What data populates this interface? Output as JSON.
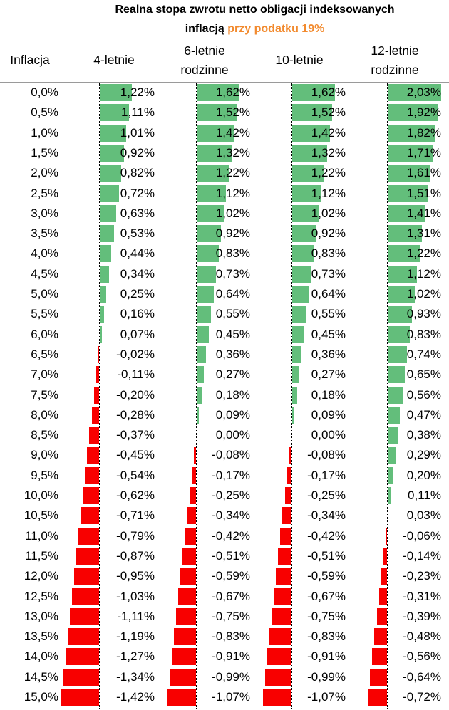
{
  "chart_data": {
    "type": "table",
    "title_line1": "Realna stopa zwrotu netto obligacji indeksowanych",
    "title_line2_prefix": "inflacją",
    "title_line2_accent": "przy podatku 19%",
    "row_header": "Inflacja",
    "columns": [
      {
        "label_line1": "4-letnie",
        "label_line2": ""
      },
      {
        "label_line1": "6-letnie",
        "label_line2": "rodzinne"
      },
      {
        "label_line1": "10-letnie",
        "label_line2": ""
      },
      {
        "label_line1": "12-letnie",
        "label_line2": "rodzinne"
      }
    ],
    "inflation": [
      "0,0%",
      "0,5%",
      "1,0%",
      "1,5%",
      "2,0%",
      "2,5%",
      "3,0%",
      "3,5%",
      "4,0%",
      "4,5%",
      "5,0%",
      "5,5%",
      "6,0%",
      "6,5%",
      "7,0%",
      "7,5%",
      "8,0%",
      "8,5%",
      "9,0%",
      "9,5%",
      "10,0%",
      "10,5%",
      "11,0%",
      "11,5%",
      "12,0%",
      "12,5%",
      "13,0%",
      "13,5%",
      "14,0%",
      "14,5%",
      "15,0%"
    ],
    "series": [
      {
        "name": "4-letnie",
        "values": [
          1.22,
          1.11,
          1.01,
          0.92,
          0.82,
          0.72,
          0.63,
          0.53,
          0.44,
          0.34,
          0.25,
          0.16,
          0.07,
          -0.02,
          -0.11,
          -0.2,
          -0.28,
          -0.37,
          -0.45,
          -0.54,
          -0.62,
          -0.71,
          -0.79,
          -0.87,
          -0.95,
          -1.03,
          -1.11,
          -1.19,
          -1.27,
          -1.34,
          -1.42
        ]
      },
      {
        "name": "6-letnie rodzinne",
        "values": [
          1.62,
          1.52,
          1.42,
          1.32,
          1.22,
          1.12,
          1.02,
          0.92,
          0.83,
          0.73,
          0.64,
          0.55,
          0.45,
          0.36,
          0.27,
          0.18,
          0.09,
          0.0,
          -0.08,
          -0.17,
          -0.25,
          -0.34,
          -0.42,
          -0.51,
          -0.59,
          -0.67,
          -0.75,
          -0.83,
          -0.91,
          -0.99,
          -1.07
        ]
      },
      {
        "name": "10-letnie",
        "values": [
          1.62,
          1.52,
          1.42,
          1.32,
          1.22,
          1.12,
          1.02,
          0.92,
          0.83,
          0.73,
          0.64,
          0.55,
          0.45,
          0.36,
          0.27,
          0.18,
          0.09,
          0.0,
          -0.08,
          -0.17,
          -0.25,
          -0.34,
          -0.42,
          -0.51,
          -0.59,
          -0.67,
          -0.75,
          -0.83,
          -0.91,
          -0.99,
          -1.07
        ]
      },
      {
        "name": "12-letnie rodzinne",
        "values": [
          2.03,
          1.92,
          1.82,
          1.71,
          1.61,
          1.51,
          1.41,
          1.31,
          1.22,
          1.12,
          1.02,
          0.93,
          0.83,
          0.74,
          0.65,
          0.56,
          0.47,
          0.38,
          0.29,
          0.2,
          0.11,
          0.03,
          -0.06,
          -0.14,
          -0.23,
          -0.31,
          -0.39,
          -0.48,
          -0.56,
          -0.64,
          -0.72
        ]
      }
    ],
    "colors": {
      "positive": "#63BE7B",
      "negative": "#F80000",
      "accent": "#F28A2E"
    }
  }
}
